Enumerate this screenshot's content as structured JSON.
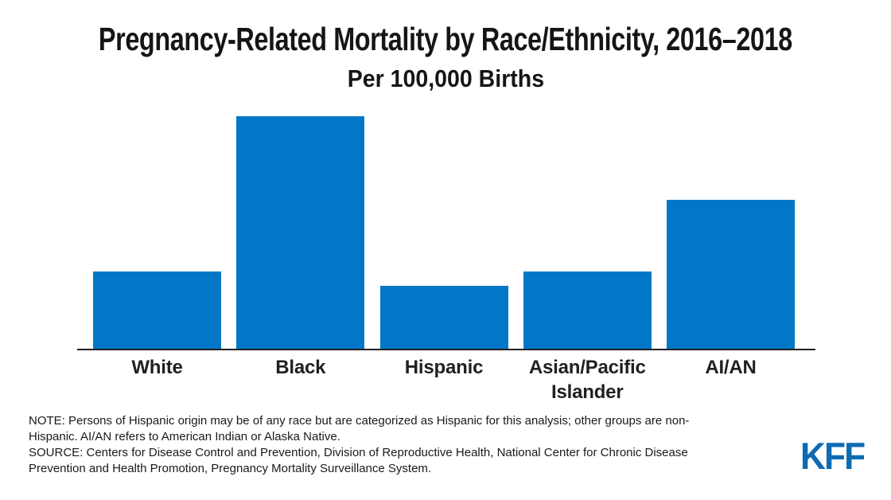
{
  "chart_data": {
    "type": "bar",
    "title": "Pregnancy-Related Mortality by Race/Ethnicity, 2016–2018",
    "subtitle": "Per 100,000 Births",
    "categories": [
      "White",
      "Black",
      "Hispanic",
      "Asian/Pacific Islander",
      "AI/AN"
    ],
    "tick_labels": [
      "White",
      "Black",
      "Hispanic",
      "Asian/Pacific\nIslander",
      "AI/AN"
    ],
    "values": [
      13.7,
      41.4,
      11.2,
      13.8,
      26.5
    ],
    "xlabel": "",
    "ylabel": "",
    "ylim": [
      0,
      41.4
    ],
    "grid": false,
    "legend": false,
    "bar_color": "#0277C7"
  },
  "footer": {
    "note": "NOTE: Persons of Hispanic origin may be of any race but are categorized as Hispanic for this analysis; other groups are non-Hispanic. AI/AN refers to American Indian or Alaska Native.",
    "source": "SOURCE: Centers for Disease Control and Prevention, Division of Reproductive Health, National Center for Chronic Disease Prevention and Health Promotion, Pregnancy Mortality Surveillance System.",
    "logo_text": "KFF"
  },
  "colors": {
    "bar_blue": "#0277C7",
    "logo_blue": "#0C6BB2",
    "text_dark": "#231F20",
    "background": "#FFFFFF"
  }
}
